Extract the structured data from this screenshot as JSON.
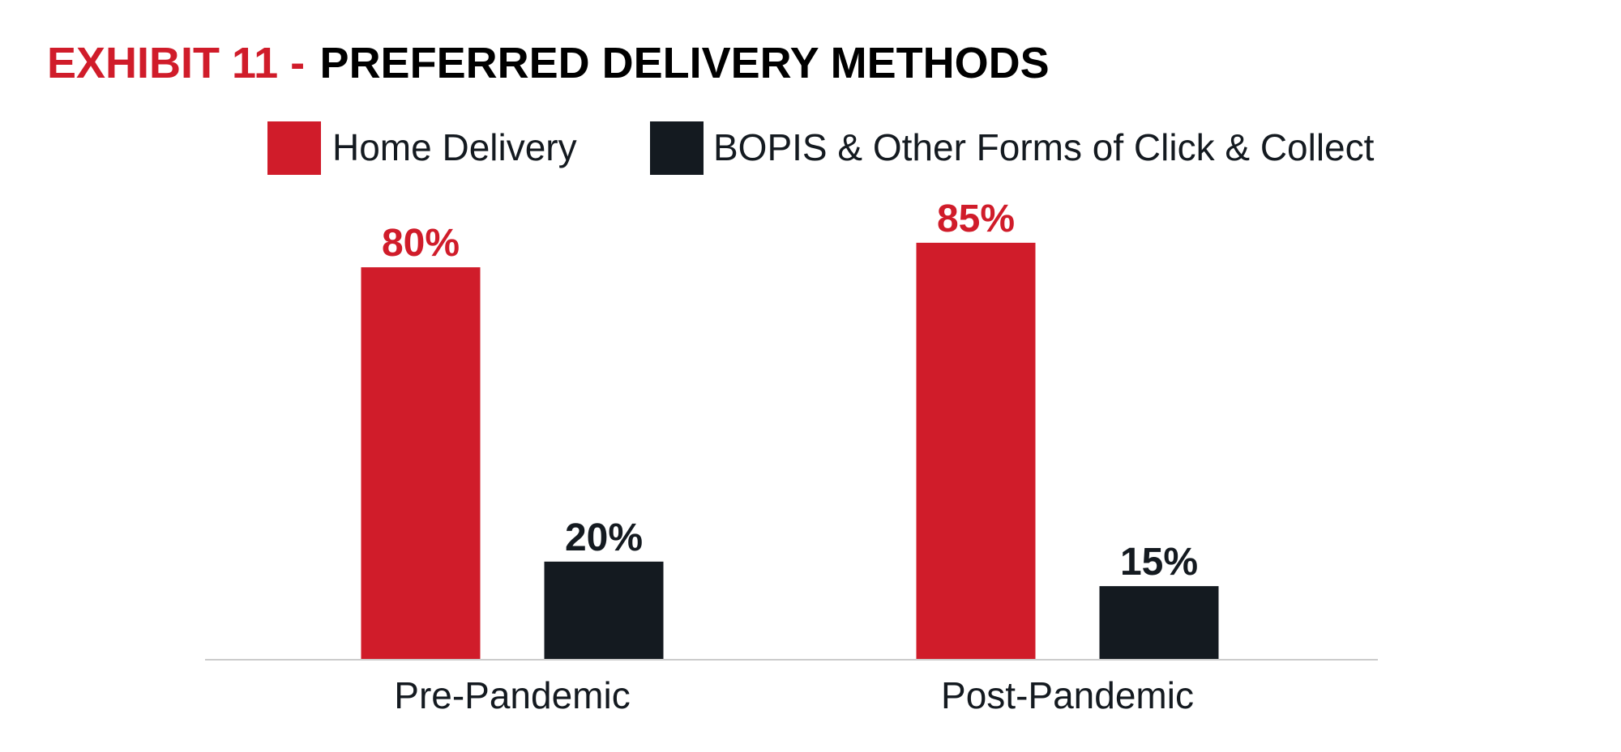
{
  "colors": {
    "home_delivery": "#d01c2a",
    "bopis": "#141a20",
    "title_prefix": "#d01c2a",
    "title_main": "#000000",
    "axis_line": "#cccccc",
    "text": "#141a20"
  },
  "chart_data": {
    "type": "bar",
    "title_prefix": "EXHIBIT 11 -",
    "title": "PREFERRED DELIVERY METHODS",
    "categories": [
      "Pre-Pandemic",
      "Post-Pandemic"
    ],
    "series": [
      {
        "name": "Home Delivery",
        "values": [
          80,
          85
        ],
        "labels": [
          "80%",
          "85%"
        ]
      },
      {
        "name": "BOPIS & Other Forms of Click & Collect",
        "values": [
          20,
          15
        ],
        "labels": [
          "20%",
          "15%"
        ]
      }
    ],
    "unit": "%",
    "ylim": [
      0,
      100
    ],
    "grid": false,
    "legend_position": "top"
  }
}
